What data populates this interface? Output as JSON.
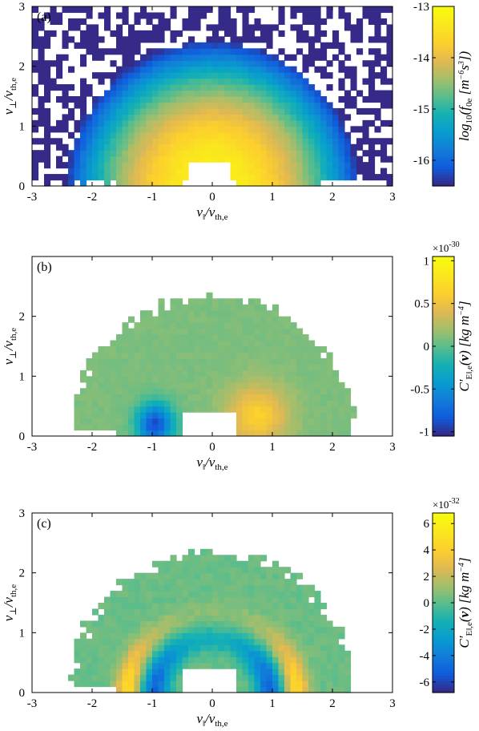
{
  "chart_data": [
    {
      "type": "heatmap",
      "panel_label": "(a)",
      "xlabel": "v‖/vth,e",
      "ylabel": "v⊥/vth,e",
      "xlim": [
        -3,
        3
      ],
      "ylim": [
        0,
        3
      ],
      "xticks": [
        "-3",
        "-2",
        "-1",
        "0",
        "1",
        "2",
        "3"
      ],
      "yticks": [
        "0",
        "1",
        "2",
        "3"
      ],
      "colorbar_label": "log10(f0e [m⁻⁶s³])",
      "colorbar_range": [
        -16.5,
        -13
      ],
      "colorbar_ticks": [
        "-13",
        "-14",
        "-15",
        "-16"
      ],
      "colorbar_exponent": "",
      "colormap": "parula",
      "description": "Maxwellian-like electron distribution, peak near origin, decreasing with speed"
    },
    {
      "type": "heatmap",
      "panel_label": "(b)",
      "xlabel": "v‖/vth,e",
      "ylabel": "v⊥/vth,e",
      "xlim": [
        -3,
        3
      ],
      "ylim": [
        0,
        3
      ],
      "xticks": [
        "-3",
        "-2",
        "-1",
        "0",
        "1",
        "2",
        "3"
      ],
      "yticks": [
        "0",
        "1",
        "2"
      ],
      "colorbar_label": "C′E‖,e(v) [kg m⁻⁴]",
      "colorbar_range": [
        -1.05,
        1.05
      ],
      "colorbar_ticks": [
        "1",
        "0.5",
        "0",
        "-0.5",
        "-1"
      ],
      "colorbar_exponent": "×10-30",
      "colormap": "parula",
      "description": "Negative lobe near v‖=-1, positive lobe near v‖=+0.7"
    },
    {
      "type": "heatmap",
      "panel_label": "(c)",
      "xlabel": "v‖/vth,e",
      "ylabel": "v⊥/vth,e",
      "xlim": [
        -3,
        3
      ],
      "ylim": [
        0,
        3
      ],
      "xticks": [
        "-3",
        "-2",
        "-1",
        "0",
        "1",
        "2",
        "3"
      ],
      "yticks": [
        "0",
        "1",
        "2",
        "3"
      ],
      "colorbar_label": "C′E‖,e(v) [kg m⁻⁴]",
      "colorbar_range": [
        -6.8,
        6.8
      ],
      "colorbar_ticks": [
        "6",
        "4",
        "2",
        "0",
        "-2",
        "-4",
        "-6"
      ],
      "colorbar_exponent": "×10-32",
      "colormap": "parula",
      "description": "Symmetric pattern: negative rings near |v|≈1, positive outer rings near |v|≈1.4"
    }
  ]
}
